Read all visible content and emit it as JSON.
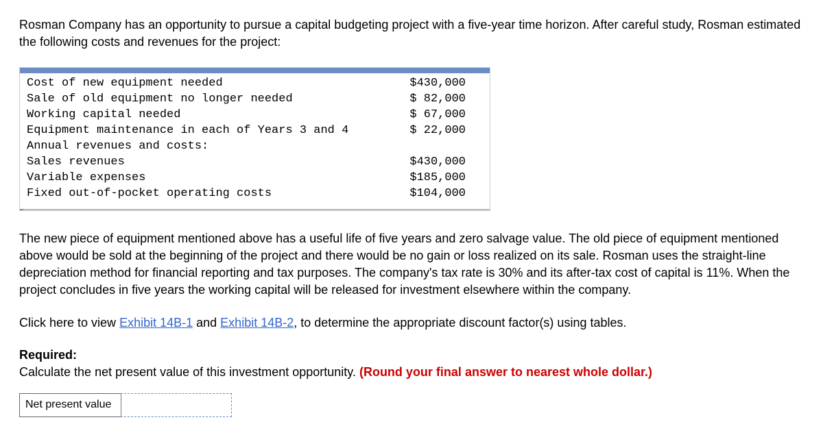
{
  "intro": "Rosman Company has an opportunity to pursue a capital budgeting project with a five-year time horizon. After careful study, Rosman estimated the following costs and revenues for the project:",
  "table": {
    "rows": [
      {
        "label": "Cost of new equipment needed",
        "value": "$430,000"
      },
      {
        "label": "Sale of old equipment no longer needed",
        "value": "$ 82,000"
      },
      {
        "label": "Working capital needed",
        "value": "$ 67,000"
      },
      {
        "label": "Equipment maintenance in each of Years 3 and 4",
        "value": "$ 22,000"
      },
      {
        "label": "Annual revenues and costs:",
        "value": ""
      },
      {
        "label": "Sales revenues",
        "value": "$430,000"
      },
      {
        "label": "Variable expenses",
        "value": "$185,000"
      },
      {
        "label": "Fixed out-of-pocket operating costs",
        "value": "$104,000"
      }
    ]
  },
  "para2": "The new piece of equipment mentioned above has a useful life of five years and zero salvage value. The old piece of equipment mentioned above would be sold at the beginning of the project and there would be no gain or loss realized on its sale. Rosman uses the straight-line depreciation method for financial reporting and tax purposes. The company's tax rate is 30% and its after-tax cost of capital is 11%. When the project concludes in five years the working capital will be released for investment elsewhere within the company.",
  "click_prefix": "Click here to view ",
  "link1": "Exhibit 14B-1",
  "and_text": " and ",
  "link2": "Exhibit 14B-2",
  "click_suffix": ", to determine the appropriate discount factor(s) using tables.",
  "required_label": "Required:",
  "required_text": "Calculate the net present value of this investment opportunity. ",
  "round_instruction": "(Round your final answer to nearest whole dollar.)",
  "answer_label": "Net present value"
}
